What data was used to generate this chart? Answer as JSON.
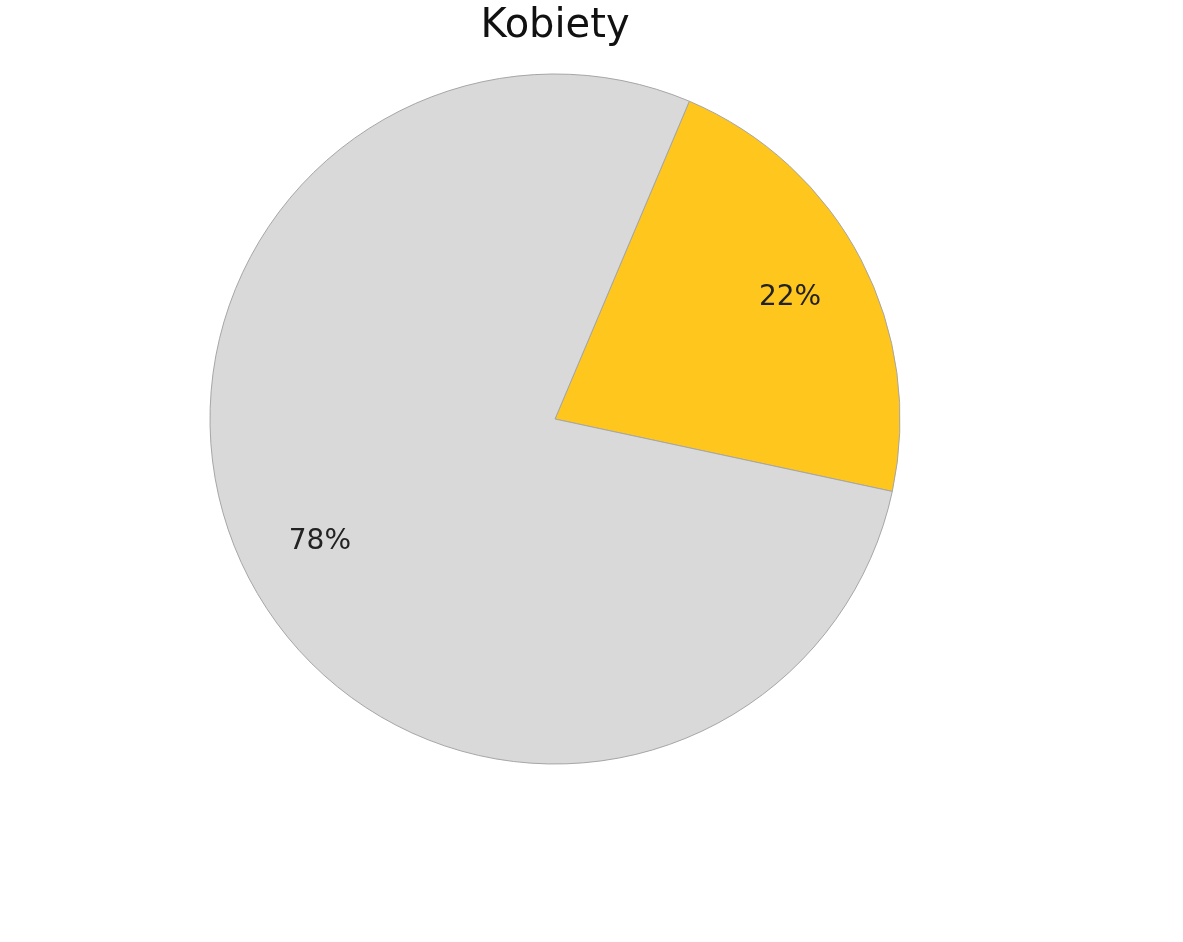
{
  "chart_data": {
    "type": "pie",
    "title": "Kobiety",
    "categories": [
      null,
      null
    ],
    "values": [
      22,
      78
    ],
    "colors": [
      "#ffc61e",
      "#d9d9d9"
    ],
    "value_labels": [
      "22%",
      "78%"
    ]
  }
}
